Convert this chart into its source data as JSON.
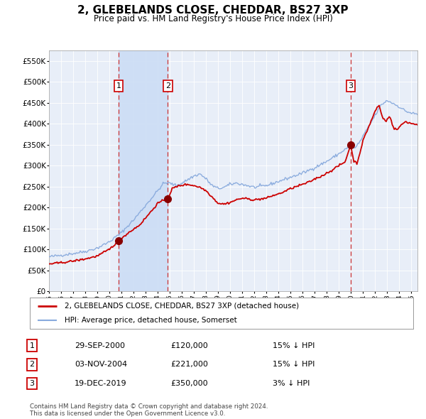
{
  "title": "2, GLEBELANDS CLOSE, CHEDDAR, BS27 3XP",
  "subtitle": "Price paid vs. HM Land Registry's House Price Index (HPI)",
  "title_fontsize": 11,
  "subtitle_fontsize": 9,
  "background_color": "#ffffff",
  "plot_bg_color": "#e8eef8",
  "grid_color": "#ffffff",
  "x_start_year": 1995,
  "x_end_year": 2025,
  "ylim": [
    0,
    575000
  ],
  "yticks": [
    0,
    50000,
    100000,
    150000,
    200000,
    250000,
    300000,
    350000,
    400000,
    450000,
    500000,
    550000
  ],
  "ytick_labels": [
    "£0",
    "£50K",
    "£100K",
    "£150K",
    "£200K",
    "£250K",
    "£300K",
    "£350K",
    "£400K",
    "£450K",
    "£500K",
    "£550K"
  ],
  "red_line_color": "#cc0000",
  "blue_line_color": "#88aadd",
  "sale_marker_color": "#880000",
  "dashed_line_color": "#cc3333",
  "shade_color": "#ccddf5",
  "sales": [
    {
      "label": "1",
      "date_num": 2000.75,
      "price": 120000,
      "date_str": "29-SEP-2000",
      "price_str": "£120,000",
      "hpi_str": "15% ↓ HPI"
    },
    {
      "label": "2",
      "date_num": 2004.84,
      "price": 221000,
      "date_str": "03-NOV-2004",
      "price_str": "£221,000",
      "hpi_str": "15% ↓ HPI"
    },
    {
      "label": "3",
      "date_num": 2019.97,
      "price": 350000,
      "date_str": "19-DEC-2019",
      "price_str": "£350,000",
      "hpi_str": "3% ↓ HPI"
    }
  ],
  "legend_label_red": "2, GLEBELANDS CLOSE, CHEDDAR, BS27 3XP (detached house)",
  "legend_label_blue": "HPI: Average price, detached house, Somerset",
  "footnote": "Contains HM Land Registry data © Crown copyright and database right 2024.\nThis data is licensed under the Open Government Licence v3.0."
}
